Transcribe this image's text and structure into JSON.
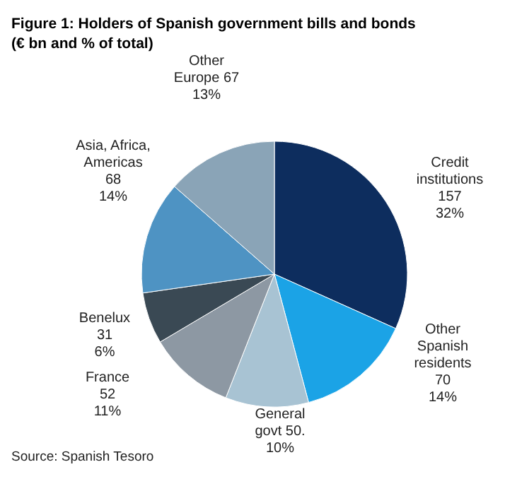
{
  "chart_data": {
    "type": "pie",
    "title": "Figure 1: Holders of Spanish government bills and bonds",
    "subtitle": "(€ bn and % of total)",
    "categories": [
      "Credit institutions",
      "Other Spanish residents",
      "General govt",
      "France",
      "Benelux",
      "Asia, Africa, Americas",
      "Other Europe"
    ],
    "values": [
      157,
      70,
      50,
      52,
      31,
      68,
      67
    ],
    "value_labels": [
      "157\n32%",
      "70\n14%",
      "50.\n10%",
      "52\n11%",
      "31\n6%",
      "68\n14%",
      "67\n13%"
    ],
    "colors": [
      "#0d2d5e",
      "#1ba3e6",
      "#a8c3d3",
      "#8d98a3",
      "#3a4954",
      "#4e93c3",
      "#8aa4b7"
    ],
    "annotations": [
      "Source: Spanish Tesoro"
    ]
  }
}
